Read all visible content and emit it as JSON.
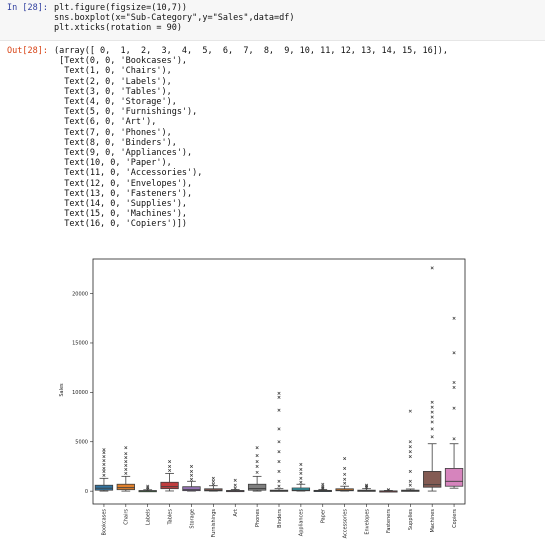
{
  "notebook": {
    "input_prompt": "In [28]:",
    "output_prompt": "Out[28]:",
    "code_lines": [
      "plt.figure(figsize=(10,7))",
      "sns.boxplot(x=\"Sub-Category\",y=\"Sales\",data=df)",
      "plt.xticks(rotation = 90)"
    ],
    "output_lines": [
      "(array([ 0,  1,  2,  3,  4,  5,  6,  7,  8,  9, 10, 11, 12, 13, 14, 15, 16]),",
      " [Text(0, 0, 'Bookcases'),",
      "  Text(1, 0, 'Chairs'),",
      "  Text(2, 0, 'Labels'),",
      "  Text(3, 0, 'Tables'),",
      "  Text(4, 0, 'Storage'),",
      "  Text(5, 0, 'Furnishings'),",
      "  Text(6, 0, 'Art'),",
      "  Text(7, 0, 'Phones'),",
      "  Text(8, 0, 'Binders'),",
      "  Text(9, 0, 'Appliances'),",
      "  Text(10, 0, 'Paper'),",
      "  Text(11, 0, 'Accessories'),",
      "  Text(12, 0, 'Envelopes'),",
      "  Text(13, 0, 'Fasteners'),",
      "  Text(14, 0, 'Supplies'),",
      "  Text(15, 0, 'Machines'),",
      "  Text(16, 0, 'Copiers')])"
    ]
  },
  "chart_data": {
    "type": "box",
    "title": "",
    "xlabel": "",
    "ylabel": "Sales",
    "ylim": [
      -1300,
      23500
    ],
    "yticks": [
      0,
      5000,
      10000,
      15000,
      20000
    ],
    "ytick_labels": [
      "0",
      "5000",
      "10000",
      "15000",
      "20000"
    ],
    "grid": false,
    "categories": [
      "Bookcases",
      "Chairs",
      "Labels",
      "Tables",
      "Storage",
      "Furnishings",
      "Art",
      "Phones",
      "Binders",
      "Appliances",
      "Paper",
      "Accessories",
      "Envelopes",
      "Fasteners",
      "Supplies",
      "Machines",
      "Copiers"
    ],
    "colors": [
      "#3274a1",
      "#e1812c",
      "#3a923a",
      "#c03d3e",
      "#9372b2",
      "#845b53",
      "#d684bd",
      "#7f7f7f",
      "#a9aa35",
      "#2fa7b8",
      "#3274a1",
      "#e1812c",
      "#3a923a",
      "#c03d3e",
      "#9372b2",
      "#845b53",
      "#d684bd"
    ],
    "boxes": [
      {
        "q1": 100,
        "median": 300,
        "q3": 600,
        "whisker_low": 5,
        "whisker_high": 1300,
        "outliers": [
          1600,
          2000,
          2300,
          2700,
          3100,
          3500,
          3900,
          4200
        ]
      },
      {
        "q1": 150,
        "median": 350,
        "q3": 700,
        "whisker_low": 5,
        "whisker_high": 1500,
        "outliers": [
          1800,
          2200,
          2600,
          3000,
          3400,
          3800,
          4400
        ]
      },
      {
        "q1": 10,
        "median": 30,
        "q3": 60,
        "whisker_low": 2,
        "whisker_high": 140,
        "outliers": [
          200,
          350,
          500
        ]
      },
      {
        "q1": 250,
        "median": 450,
        "q3": 900,
        "whisker_low": 20,
        "whisker_high": 1800,
        "outliers": [
          2100,
          2500,
          3000
        ]
      },
      {
        "q1": 50,
        "median": 150,
        "q3": 450,
        "whisker_low": 5,
        "whisker_high": 1000,
        "outliers": [
          1200,
          1600,
          2000,
          2500
        ]
      },
      {
        "q1": 30,
        "median": 80,
        "q3": 240,
        "whisker_low": 2,
        "whisker_high": 550,
        "outliers": [
          700,
          1000,
          1300
        ]
      },
      {
        "q1": 10,
        "median": 25,
        "q3": 70,
        "whisker_low": 2,
        "whisker_high": 160,
        "outliers": [
          300,
          600,
          1100
        ]
      },
      {
        "q1": 100,
        "median": 280,
        "q3": 700,
        "whisker_low": 5,
        "whisker_high": 1500,
        "outliers": [
          1900,
          2500,
          3000,
          3600,
          4400
        ]
      },
      {
        "q1": 10,
        "median": 30,
        "q3": 100,
        "whisker_low": 2,
        "whisker_high": 250,
        "outliers": [
          500,
          1000,
          2000,
          3000,
          4000,
          5000,
          6300,
          8200,
          9500,
          9900
        ]
      },
      {
        "q1": 40,
        "median": 110,
        "q3": 320,
        "whisker_low": 5,
        "whisker_high": 700,
        "outliers": [
          900,
          1300,
          1800,
          2200,
          2700
        ]
      },
      {
        "q1": 15,
        "median": 40,
        "q3": 80,
        "whisker_low": 2,
        "whisker_high": 180,
        "outliers": [
          250,
          350,
          500,
          700
        ]
      },
      {
        "q1": 40,
        "median": 100,
        "q3": 240,
        "whisker_low": 5,
        "whisker_high": 500,
        "outliers": [
          800,
          1200,
          1700,
          2300,
          3300
        ]
      },
      {
        "q1": 15,
        "median": 35,
        "q3": 100,
        "whisker_low": 2,
        "whisker_high": 250,
        "outliers": [
          350,
          500,
          600
        ]
      },
      {
        "q1": 5,
        "median": 15,
        "q3": 30,
        "whisker_low": 1,
        "whisker_high": 70,
        "outliers": [
          100,
          150
        ]
      },
      {
        "q1": 15,
        "median": 40,
        "q3": 100,
        "whisker_low": 2,
        "whisker_high": 220,
        "outliers": [
          600,
          1000,
          2000,
          3500,
          4000,
          4500,
          5000,
          8100
        ]
      },
      {
        "q1": 400,
        "median": 650,
        "q3": 2000,
        "whisker_low": 10,
        "whisker_high": 4800,
        "outliers": [
          5500,
          6300,
          7000,
          7500,
          8000,
          8500,
          9000,
          22600
        ]
      },
      {
        "q1": 500,
        "median": 1000,
        "q3": 2300,
        "whisker_low": 300,
        "whisker_high": 4800,
        "outliers": [
          5300,
          8400,
          10500,
          11000,
          14000,
          17500
        ]
      }
    ]
  }
}
